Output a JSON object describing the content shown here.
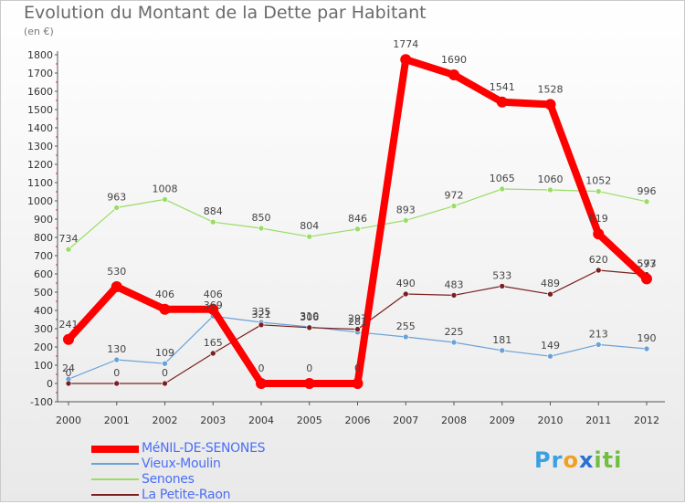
{
  "title": "Evolution du Montant de la Dette par Habitant",
  "subtitle": "(en €)",
  "logo": {
    "parts": [
      "Pr",
      "o",
      "x",
      "iti"
    ],
    "colors": [
      "#3aa0e0",
      "#f0a020",
      "#2a70d0",
      "#70c040"
    ]
  },
  "chart_data": {
    "type": "line",
    "title": "Evolution du Montant de la Dette par Habitant",
    "subtitle": "(en €)",
    "xlabel": "",
    "ylabel": "",
    "ylim": [
      -100,
      1800
    ],
    "yticks": [
      -100,
      0,
      100,
      200,
      300,
      400,
      500,
      600,
      700,
      800,
      900,
      1000,
      1100,
      1200,
      1300,
      1400,
      1500,
      1600,
      1700,
      1800
    ],
    "grid": false,
    "legend_position": "bottom-left",
    "categories": [
      "2000",
      "2001",
      "2002",
      "2003",
      "2004",
      "2005",
      "2006",
      "2007",
      "2008",
      "2009",
      "2010",
      "2011",
      "2012"
    ],
    "series": [
      {
        "name": "MéNIL-DE-SENONES",
        "color": "#ff0000",
        "values": [
          241,
          530,
          406,
          406,
          0,
          0,
          0,
          1774,
          1690,
          1541,
          1528,
          819,
          573
        ]
      },
      {
        "name": "Vieux-Moulin",
        "color": "#6aa1d8",
        "values": [
          24,
          130,
          109,
          369,
          335,
          310,
          281,
          255,
          225,
          181,
          149,
          213,
          190
        ]
      },
      {
        "name": "Senones",
        "color": "#99dd66",
        "values": [
          734,
          963,
          1008,
          884,
          850,
          804,
          846,
          893,
          972,
          1065,
          1060,
          1052,
          996
        ]
      },
      {
        "name": "La Petite-Raon",
        "color": "#7a2020",
        "values": [
          0,
          0,
          0,
          165,
          321,
          306,
          297,
          490,
          483,
          533,
          489,
          620,
          597
        ]
      }
    ]
  }
}
